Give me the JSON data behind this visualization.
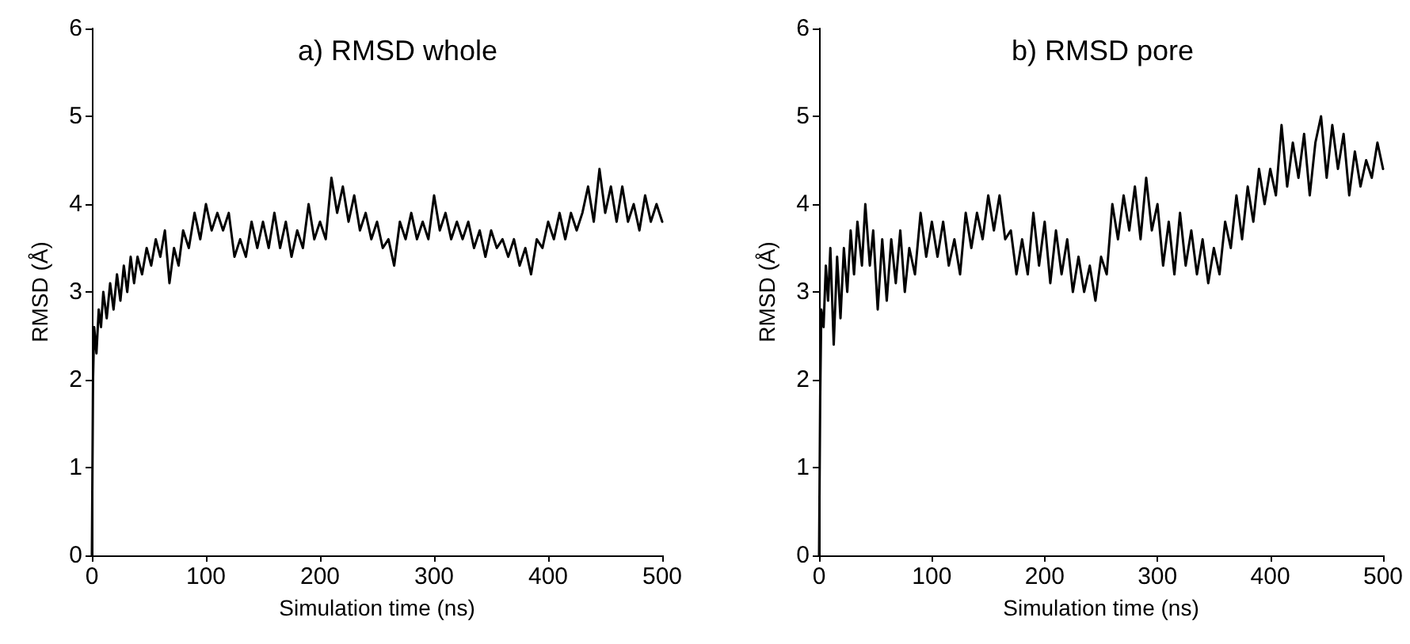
{
  "chart_data": [
    {
      "type": "line",
      "title": "a) RMSD whole",
      "xlabel": "Simulation time (ns)",
      "ylabel": "RMSD (Å)",
      "xlim": [
        0,
        500
      ],
      "xticks": [
        0,
        100,
        200,
        300,
        400,
        500
      ],
      "ylim": [
        0,
        6
      ],
      "yticks": [
        0,
        1,
        2,
        3,
        4,
        5,
        6
      ],
      "grid": false,
      "marker": "none",
      "line_style": "solid",
      "series": [
        {
          "color": "#000000",
          "x": [
            0,
            1,
            2,
            4,
            6,
            8,
            10,
            13,
            16,
            19,
            22,
            25,
            28,
            31,
            34,
            37,
            40,
            44,
            48,
            52,
            56,
            60,
            64,
            68,
            72,
            76,
            80,
            85,
            90,
            95,
            100,
            105,
            110,
            115,
            120,
            125,
            130,
            135,
            140,
            145,
            150,
            155,
            160,
            165,
            170,
            175,
            180,
            185,
            190,
            195,
            200,
            205,
            210,
            215,
            220,
            225,
            230,
            235,
            240,
            245,
            250,
            255,
            260,
            265,
            270,
            275,
            280,
            285,
            290,
            295,
            300,
            305,
            310,
            315,
            320,
            325,
            330,
            335,
            340,
            345,
            350,
            355,
            360,
            365,
            370,
            375,
            380,
            385,
            390,
            395,
            400,
            405,
            410,
            415,
            420,
            425,
            430,
            435,
            440,
            445,
            450,
            455,
            460,
            465,
            470,
            475,
            480,
            485,
            490,
            495,
            500
          ],
          "values": [
            0,
            2.0,
            2.6,
            2.3,
            2.8,
            2.6,
            3.0,
            2.7,
            3.1,
            2.8,
            3.2,
            2.9,
            3.3,
            3.0,
            3.4,
            3.1,
            3.4,
            3.2,
            3.5,
            3.3,
            3.6,
            3.4,
            3.7,
            3.1,
            3.5,
            3.3,
            3.7,
            3.5,
            3.9,
            3.6,
            4.0,
            3.7,
            3.9,
            3.7,
            3.9,
            3.4,
            3.6,
            3.4,
            3.8,
            3.5,
            3.8,
            3.5,
            3.9,
            3.5,
            3.8,
            3.4,
            3.7,
            3.5,
            4.0,
            3.6,
            3.8,
            3.6,
            4.3,
            3.9,
            4.2,
            3.8,
            4.1,
            3.7,
            3.9,
            3.6,
            3.8,
            3.5,
            3.6,
            3.3,
            3.8,
            3.6,
            3.9,
            3.6,
            3.8,
            3.6,
            4.1,
            3.7,
            3.9,
            3.6,
            3.8,
            3.6,
            3.8,
            3.5,
            3.7,
            3.4,
            3.7,
            3.5,
            3.6,
            3.4,
            3.6,
            3.3,
            3.5,
            3.2,
            3.6,
            3.5,
            3.8,
            3.6,
            3.9,
            3.6,
            3.9,
            3.7,
            3.9,
            4.2,
            3.8,
            4.4,
            3.9,
            4.2,
            3.8,
            4.2,
            3.8,
            4.0,
            3.7,
            4.1,
            3.8,
            4.0,
            3.8
          ]
        }
      ]
    },
    {
      "type": "line",
      "title": "b) RMSD pore",
      "xlabel": "Simulation time (ns)",
      "ylabel": "RMSD (Å)",
      "xlim": [
        0,
        500
      ],
      "xticks": [
        0,
        100,
        200,
        300,
        400,
        500
      ],
      "ylim": [
        0,
        6
      ],
      "yticks": [
        0,
        1,
        2,
        3,
        4,
        5,
        6
      ],
      "grid": false,
      "marker": "none",
      "line_style": "solid",
      "series": [
        {
          "color": "#000000",
          "x": [
            0,
            1,
            2,
            4,
            6,
            8,
            10,
            13,
            16,
            19,
            22,
            25,
            28,
            31,
            34,
            38,
            41,
            45,
            48,
            52,
            56,
            60,
            64,
            68,
            72,
            76,
            80,
            85,
            90,
            95,
            100,
            105,
            110,
            115,
            120,
            125,
            130,
            135,
            140,
            145,
            150,
            155,
            160,
            165,
            170,
            175,
            180,
            185,
            190,
            195,
            200,
            205,
            210,
            215,
            220,
            225,
            230,
            235,
            240,
            245,
            250,
            255,
            260,
            265,
            270,
            275,
            280,
            285,
            290,
            295,
            300,
            305,
            310,
            315,
            320,
            325,
            330,
            335,
            340,
            345,
            350,
            355,
            360,
            365,
            370,
            375,
            380,
            385,
            390,
            395,
            400,
            405,
            410,
            415,
            420,
            425,
            430,
            435,
            440,
            445,
            450,
            455,
            460,
            465,
            470,
            475,
            480,
            485,
            490,
            495,
            500
          ],
          "values": [
            0,
            1.8,
            2.8,
            2.6,
            3.3,
            2.9,
            3.5,
            2.4,
            3.4,
            2.7,
            3.5,
            3.0,
            3.7,
            3.2,
            3.8,
            3.3,
            4.0,
            3.3,
            3.7,
            2.8,
            3.6,
            2.9,
            3.6,
            3.1,
            3.7,
            3.0,
            3.5,
            3.2,
            3.9,
            3.4,
            3.8,
            3.4,
            3.8,
            3.3,
            3.6,
            3.2,
            3.9,
            3.5,
            3.9,
            3.6,
            4.1,
            3.7,
            4.1,
            3.6,
            3.7,
            3.2,
            3.6,
            3.2,
            3.9,
            3.3,
            3.8,
            3.1,
            3.7,
            3.2,
            3.6,
            3.0,
            3.4,
            3.0,
            3.3,
            2.9,
            3.4,
            3.2,
            4.0,
            3.6,
            4.1,
            3.7,
            4.2,
            3.6,
            4.3,
            3.7,
            4.0,
            3.3,
            3.8,
            3.2,
            3.9,
            3.3,
            3.7,
            3.2,
            3.6,
            3.1,
            3.5,
            3.2,
            3.8,
            3.5,
            4.1,
            3.6,
            4.2,
            3.8,
            4.4,
            4.0,
            4.4,
            4.1,
            4.9,
            4.2,
            4.7,
            4.3,
            4.8,
            4.1,
            4.7,
            5.0,
            4.3,
            4.9,
            4.4,
            4.8,
            4.1,
            4.6,
            4.2,
            4.5,
            4.3,
            4.7,
            4.4
          ]
        }
      ]
    }
  ]
}
